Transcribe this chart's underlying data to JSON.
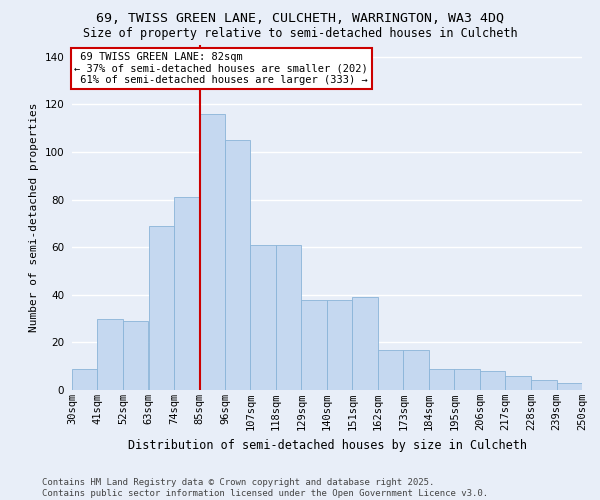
{
  "title1": "69, TWISS GREEN LANE, CULCHETH, WARRINGTON, WA3 4DQ",
  "title2": "Size of property relative to semi-detached houses in Culcheth",
  "xlabel": "Distribution of semi-detached houses by size in Culcheth",
  "ylabel": "Number of semi-detached properties",
  "categories": [
    "30sqm",
    "41sqm",
    "52sqm",
    "63sqm",
    "74sqm",
    "85sqm",
    "96sqm",
    "107sqm",
    "118sqm",
    "129sqm",
    "140sqm",
    "151sqm",
    "162sqm",
    "173sqm",
    "184sqm",
    "195sqm",
    "206sqm",
    "217sqm",
    "228sqm",
    "239sqm",
    "250sqm"
  ],
  "heights": [
    9,
    30,
    29,
    69,
    81,
    116,
    105,
    61,
    61,
    38,
    38,
    39,
    17,
    17,
    9,
    9,
    8,
    6,
    4,
    3
  ],
  "bin_edges": [
    30,
    41,
    52,
    63,
    74,
    85,
    96,
    107,
    118,
    129,
    140,
    151,
    162,
    173,
    184,
    195,
    206,
    217,
    228,
    239,
    250
  ],
  "property_size": "82sqm",
  "address_short": "69 TWISS GREEN LANE",
  "pct_smaller": 37,
  "pct_larger": 61,
  "count_smaller": 202,
  "count_larger": 333,
  "bar_color": "#c5d8f0",
  "bar_edge_color": "#8ab4d8",
  "vline_color": "#cc0000",
  "bg_color": "#e8eef8",
  "grid_color": "#ffffff",
  "ylim": [
    0,
    145
  ],
  "yticks": [
    0,
    20,
    40,
    60,
    80,
    100,
    120,
    140
  ],
  "title1_fontsize": 9.5,
  "title2_fontsize": 8.5,
  "ylabel_fontsize": 8,
  "xlabel_fontsize": 8.5,
  "tick_fontsize": 7.5,
  "ann_fontsize": 7.5,
  "footer": "Contains HM Land Registry data © Crown copyright and database right 2025.\nContains public sector information licensed under the Open Government Licence v3.0."
}
